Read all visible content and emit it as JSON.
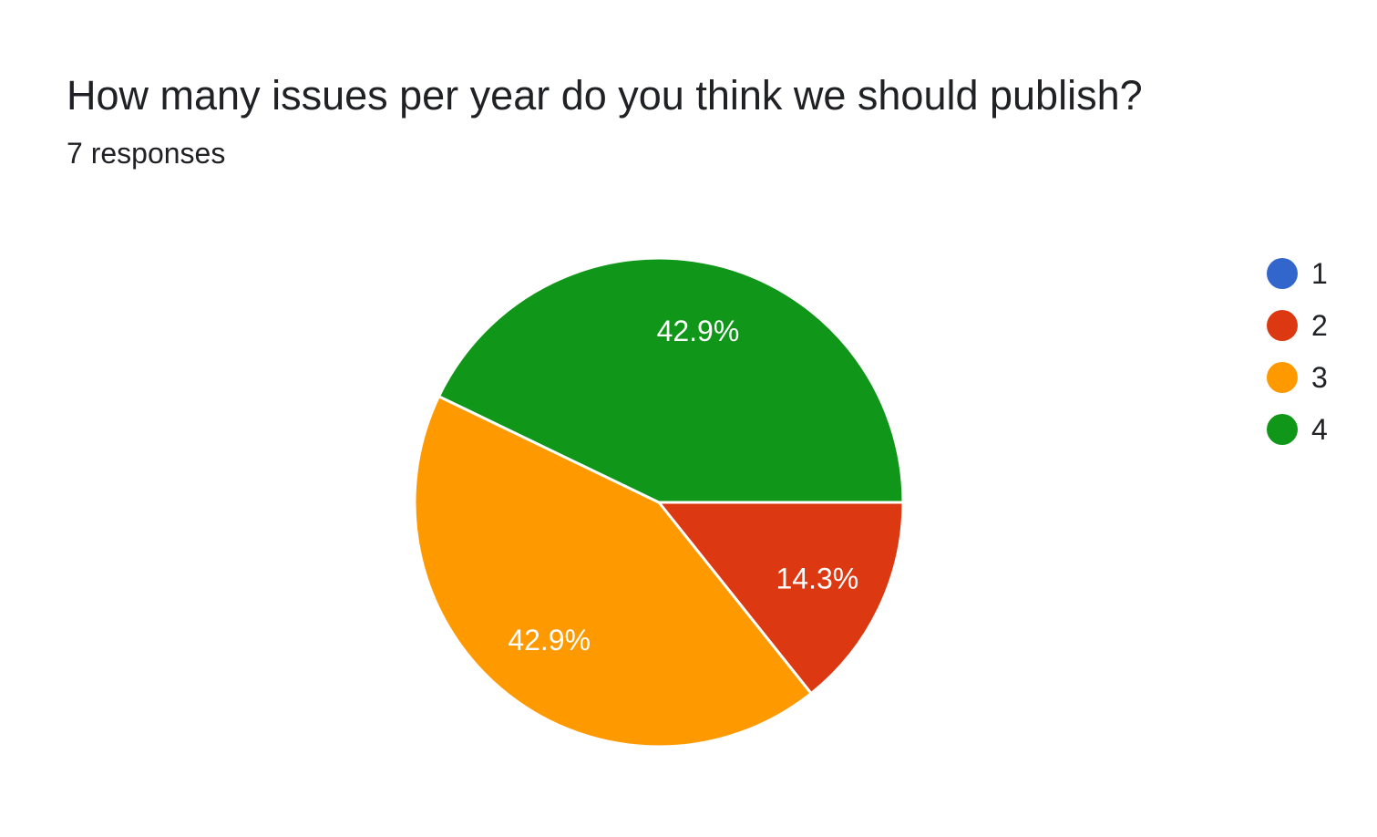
{
  "chart_data": {
    "type": "pie",
    "title": "How many issues per year do you think we should publish?",
    "subtitle": "7 responses",
    "categories": [
      "1",
      "2",
      "3",
      "4"
    ],
    "values": [
      0,
      1,
      3,
      3
    ],
    "percent_labels": [
      "",
      "14.3%",
      "42.9%",
      "42.9%"
    ],
    "colors": [
      "#3366cc",
      "#dc3912",
      "#ff9900",
      "#109618"
    ],
    "legend_position": "right"
  }
}
